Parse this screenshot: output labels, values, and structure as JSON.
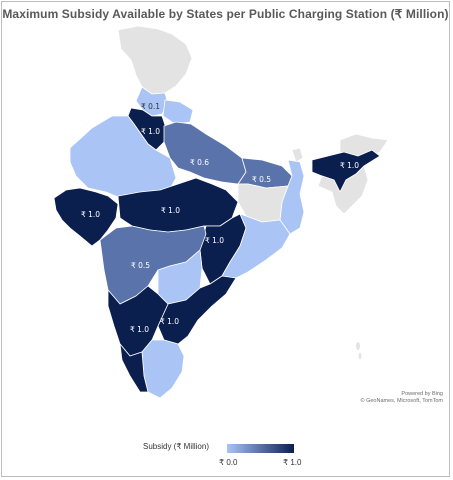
{
  "title": "Maximum Subsidy Available by States per Public Charging Station (₹ Million)",
  "attribution": {
    "line1": "Powered by Bing",
    "line2": "© GeoNames, Microsoft, TomTom"
  },
  "legend": {
    "title": "Subsidy (₹ Million)",
    "min_label": "₹ 0.0",
    "max_label": "₹ 1.0",
    "min_color": "#a9c4f5",
    "max_color": "#0b1f4f"
  },
  "colors": {
    "no_data": "#e3e3e3",
    "low": "#a9c4f5",
    "mid": "#5b73ab",
    "high": "#0b1f4f",
    "border": "#ffffff"
  },
  "map_data": {
    "value_unit": "₹ Million",
    "labels": [
      {
        "region": "Himachal Pradesh",
        "text": "₹ 0.1",
        "value": 0.1
      },
      {
        "region": "Punjab / Haryana / Delhi",
        "text": "₹ 1.0",
        "value": 1.0
      },
      {
        "region": "Uttar Pradesh",
        "text": "₹ 0.6",
        "value": 0.6
      },
      {
        "region": "Bihar",
        "text": "₹ 0.5",
        "value": 0.5
      },
      {
        "region": "Assam",
        "text": "₹ 1.0",
        "value": 1.0
      },
      {
        "region": "Gujarat",
        "text": "₹ 1.0",
        "value": 1.0
      },
      {
        "region": "Madhya Pradesh",
        "text": "₹ 1.0",
        "value": 1.0
      },
      {
        "region": "Chhattisgarh",
        "text": "₹ 1.0",
        "value": 1.0
      },
      {
        "region": "Maharashtra",
        "text": "₹ 0.5",
        "value": 0.5
      },
      {
        "region": "Karnataka",
        "text": "₹ 1.0",
        "value": 1.0
      },
      {
        "region": "Tamil Nadu / Andhra Pradesh",
        "text": "₹ 1.0",
        "value": 1.0
      }
    ]
  }
}
